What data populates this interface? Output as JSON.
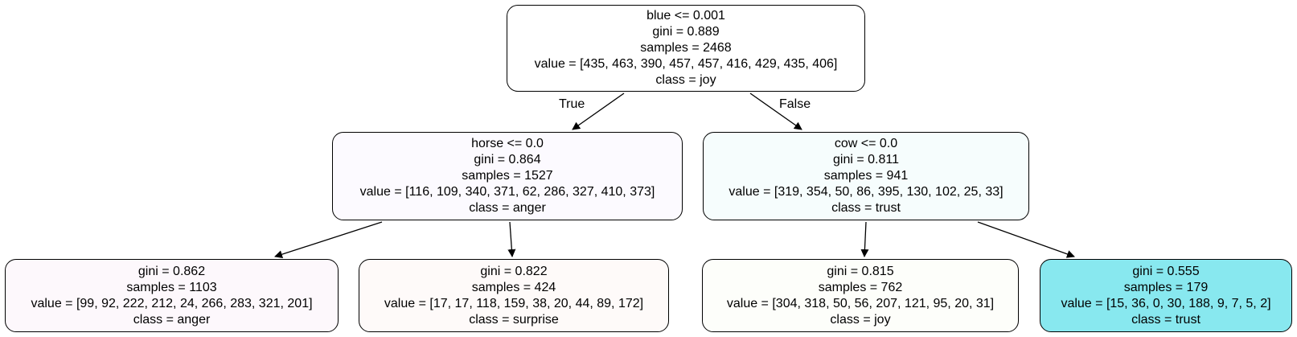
{
  "tree": {
    "root": {
      "lines": [
        "blue <= 0.001",
        "gini = 0.889",
        "samples = 2468",
        "value = [435, 463, 390, 457, 457, 416, 429, 435, 406]",
        "class = joy"
      ],
      "fill": "#ffffff"
    },
    "left": {
      "lines": [
        "horse <= 0.0",
        "gini = 0.864",
        "samples = 1527",
        "value = [116, 109, 340, 371, 62, 286, 327, 410, 373]",
        "class = anger"
      ],
      "fill": "#fcfaff"
    },
    "right": {
      "lines": [
        "cow <= 0.0",
        "gini = 0.811",
        "samples = 941",
        "value = [319, 354, 50, 86, 395, 130, 102, 25, 33]",
        "class = trust"
      ],
      "fill": "#f6fdfd"
    },
    "left_left": {
      "lines": [
        "gini = 0.862",
        "samples = 1103",
        "value = [99, 92, 222, 212, 24, 266, 283, 321, 201]",
        "class = anger"
      ],
      "fill": "#fdf8fc"
    },
    "left_right": {
      "lines": [
        "gini = 0.822",
        "samples = 424",
        "value = [17, 17, 118, 159, 38, 20, 44, 89, 172]",
        "class = surprise"
      ],
      "fill": "#fefaf9"
    },
    "right_left": {
      "lines": [
        "gini = 0.815",
        "samples = 762",
        "value = [304, 318, 50, 56, 207, 121, 95, 20, 31]",
        "class = joy"
      ],
      "fill": "#fdfefa"
    },
    "right_right": {
      "lines": [
        "gini = 0.555",
        "samples = 179",
        "value = [15, 36, 0, 30, 188, 9, 7, 5, 2]",
        "class = trust"
      ],
      "fill": "#88e8ef"
    },
    "edge_labels": {
      "true": "True",
      "false": "False"
    }
  }
}
